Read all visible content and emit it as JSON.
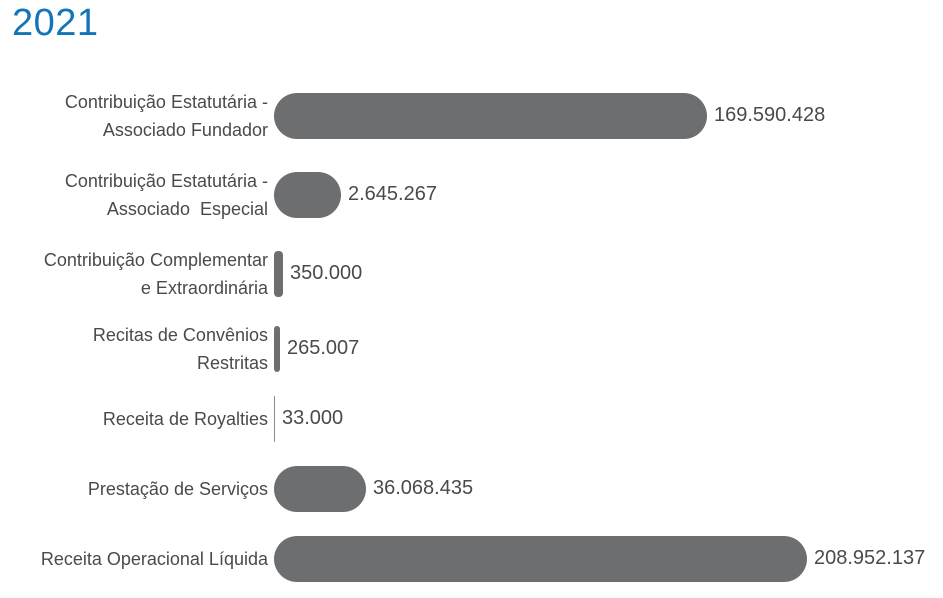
{
  "title": "2021",
  "colors": {
    "title": "#1474b8",
    "bar": "#6d6e70",
    "text": "#4a4a4a"
  },
  "chart_data": {
    "type": "bar",
    "orientation": "horizontal",
    "categories": [
      [
        "Contribuição Estatutária -",
        "Associado Fundador"
      ],
      [
        "Contribuição Estatutária -",
        "Associado  Especial"
      ],
      [
        "Contribuição Complementar",
        "e Extraordinária"
      ],
      [
        "Recitas de Convênios",
        "Restritas"
      ],
      [
        "Receita de Royalties"
      ],
      [
        "Prestação de Serviços"
      ],
      [
        "Receita Operacional Líquida"
      ]
    ],
    "values": [
      169590428,
      2645267,
      350000,
      265007,
      33000,
      36068435,
      208952137
    ],
    "value_labels": [
      "169.590.428",
      "2.645.267",
      "350.000",
      "265.007",
      "33.000",
      "36.068.435",
      "208.952.137"
    ],
    "title": "2021",
    "xlabel": "",
    "ylabel": "",
    "grid": false,
    "legend": "none"
  }
}
